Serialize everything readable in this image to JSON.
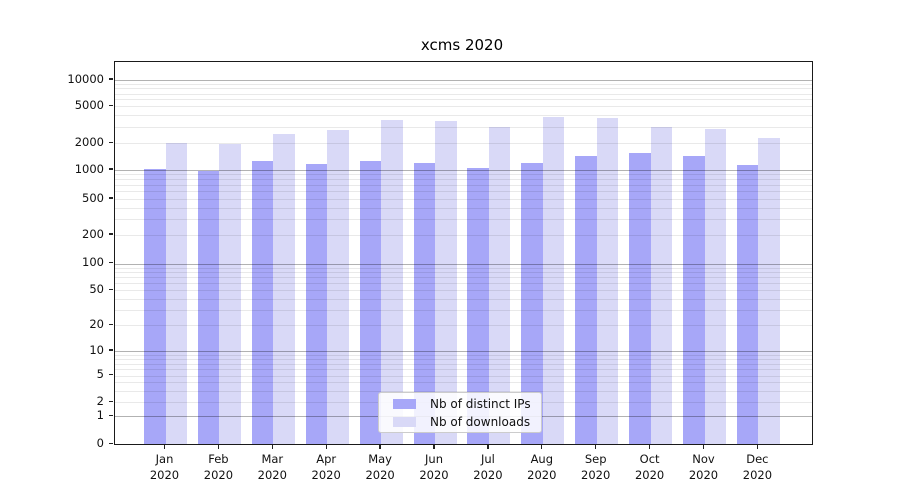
{
  "chart_data": {
    "type": "bar",
    "title": "xcms 2020",
    "categories": [
      "Jan",
      "Feb",
      "Mar",
      "Apr",
      "May",
      "Jun",
      "Jul",
      "Aug",
      "Sep",
      "Oct",
      "Nov",
      "Dec"
    ],
    "xtick_year": "2020",
    "series": [
      {
        "name": "Nb of distinct IPs",
        "color": "#a7a7f8",
        "values": [
          1030,
          970,
          1260,
          1180,
          1250,
          1210,
          1050,
          1190,
          1420,
          1560,
          1440,
          1140
        ]
      },
      {
        "name": "Nb of downloads",
        "color": "#d9d9f7",
        "values": [
          2000,
          1970,
          2530,
          2760,
          3570,
          3460,
          3010,
          3860,
          3730,
          3000,
          2830,
          2260
        ]
      }
    ],
    "yscale": "symlog",
    "ytick_labels": [
      "0",
      "1",
      "2",
      "5",
      "10",
      "20",
      "50",
      "100",
      "200",
      "500",
      "1000",
      "2000",
      "5000",
      "10000"
    ],
    "ylim": [
      0,
      15000
    ],
    "grid": true,
    "legend_position": "lower center",
    "colors": {
      "grid_major": "#b3b3b3",
      "grid_minor": "#e8e8e8",
      "spine": "#1a1a1a",
      "text": "#111111",
      "legend_border": "#cccccc"
    }
  }
}
